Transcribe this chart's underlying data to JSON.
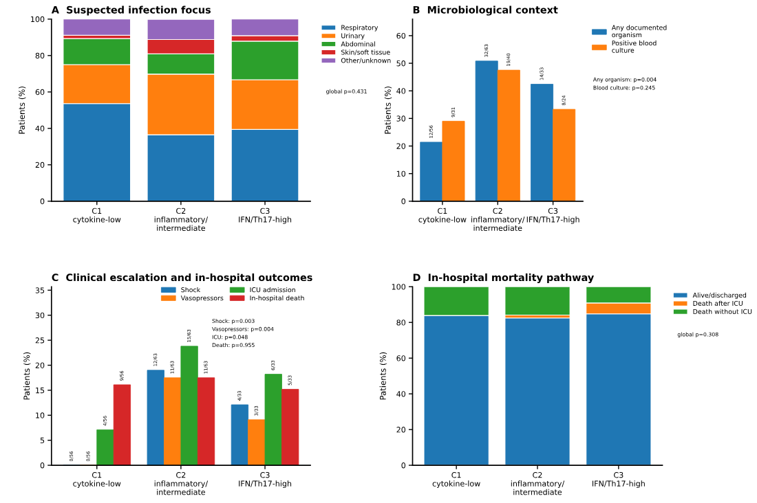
{
  "chart_data": [
    {
      "type": "bar",
      "title": "A  Suspected infection focus",
      "ylabel": "Patients (%)",
      "categories": [
        "C1\ncytokine-low",
        "C2\ninflammatory/\nintermediate",
        "C3\nIFN/Th17-high"
      ],
      "stacked": true,
      "ylim": [
        0,
        100
      ],
      "yticks": [
        0,
        20,
        40,
        60,
        80,
        100
      ],
      "legend": "right",
      "annotations": [
        "global p=0.431"
      ],
      "series": [
        {
          "name": "Respiratory",
          "color": "#1f77b4",
          "values": [
            53.6,
            36.5,
            39.4
          ]
        },
        {
          "name": "Urinary",
          "color": "#ff7f0e",
          "values": [
            21.4,
            33.3,
            27.3
          ]
        },
        {
          "name": "Abdominal",
          "color": "#2ca02c",
          "values": [
            14.3,
            11.1,
            21.2
          ]
        },
        {
          "name": "Skin/soft tissue",
          "color": "#d62728",
          "values": [
            1.8,
            7.9,
            3.0
          ]
        },
        {
          "name": "Other/unknown",
          "color": "#9467bd",
          "values": [
            8.9,
            11.1,
            9.1
          ]
        }
      ]
    },
    {
      "type": "bar",
      "title": "B  Microbiological context",
      "ylabel": "Patients (%)",
      "categories": [
        "C1\ncytokine-low",
        "C2\ninflammatory/\nintermediate",
        "C3\nIFN/Th17-high"
      ],
      "ylim": [
        0,
        66
      ],
      "yticks": [
        0,
        10,
        20,
        30,
        40,
        50,
        60
      ],
      "legend": "right",
      "annotations": [
        "Any organism: p=0.004",
        "Blood culture: p=0.245"
      ],
      "series": [
        {
          "name": "Any documented\norganism",
          "color": "#1f77b4",
          "values": [
            21.4,
            50.8,
            42.4
          ],
          "value_labels": [
            "12/56",
            "32/63",
            "14/33"
          ]
        },
        {
          "name": "Positive blood\nculture",
          "color": "#ff7f0e",
          "values": [
            29.0,
            47.5,
            33.3
          ],
          "value_labels": [
            "9/31",
            "19/40",
            "8/24"
          ]
        }
      ]
    },
    {
      "type": "bar",
      "title": "C  Clinical escalation and in-hospital outcomes",
      "ylabel": "Patients (%)",
      "categories": [
        "C1\ncytokine-low",
        "C2\ninflammatory/\nintermediate",
        "C3\nIFN/Th17-high"
      ],
      "ylim": [
        0,
        35.7
      ],
      "yticks": [
        0,
        5,
        10,
        15,
        20,
        25,
        30,
        35
      ],
      "legend": "top right",
      "annotations": [
        "Shock: p=0.003",
        "Vasopressors: p=0.004",
        "ICU: p=0.048",
        "Death: p=0.955"
      ],
      "series": [
        {
          "name": "Shock",
          "color": "#1f77b4",
          "values": [
            0,
            19.0,
            12.1
          ],
          "value_labels": [
            "0/56",
            "12/63",
            "4/33"
          ]
        },
        {
          "name": "Vasopressors",
          "color": "#ff7f0e",
          "values": [
            0,
            17.5,
            9.1
          ],
          "value_labels": [
            "0/56",
            "11/63",
            "3/33"
          ]
        },
        {
          "name": "ICU admission",
          "color": "#2ca02c",
          "values": [
            7.1,
            23.8,
            18.2
          ],
          "value_labels": [
            "4/56",
            "15/63",
            "6/33"
          ]
        },
        {
          "name": "In-hospital death",
          "color": "#d62728",
          "values": [
            16.1,
            17.5,
            15.2
          ],
          "value_labels": [
            "9/56",
            "11/63",
            "5/33"
          ]
        }
      ]
    },
    {
      "type": "bar",
      "title": "D  In-hospital mortality pathway",
      "ylabel": "Patients (%)",
      "categories": [
        "C1\ncytokine-low",
        "C2\ninflammatory/\nintermediate",
        "C3\nIFN/Th17-high"
      ],
      "stacked": true,
      "ylim": [
        0,
        100
      ],
      "yticks": [
        0,
        20,
        40,
        60,
        80,
        100
      ],
      "legend": "right",
      "annotations": [
        "global p=0.308"
      ],
      "series": [
        {
          "name": "Alive/discharged",
          "color": "#1f77b4",
          "values": [
            83.9,
            82.5,
            84.8
          ]
        },
        {
          "name": "Death after ICU",
          "color": "#ff7f0e",
          "values": [
            0,
            1.6,
            6.1
          ]
        },
        {
          "name": "Death without ICU",
          "color": "#2ca02c",
          "values": [
            16.1,
            15.9,
            9.1
          ]
        }
      ]
    }
  ]
}
